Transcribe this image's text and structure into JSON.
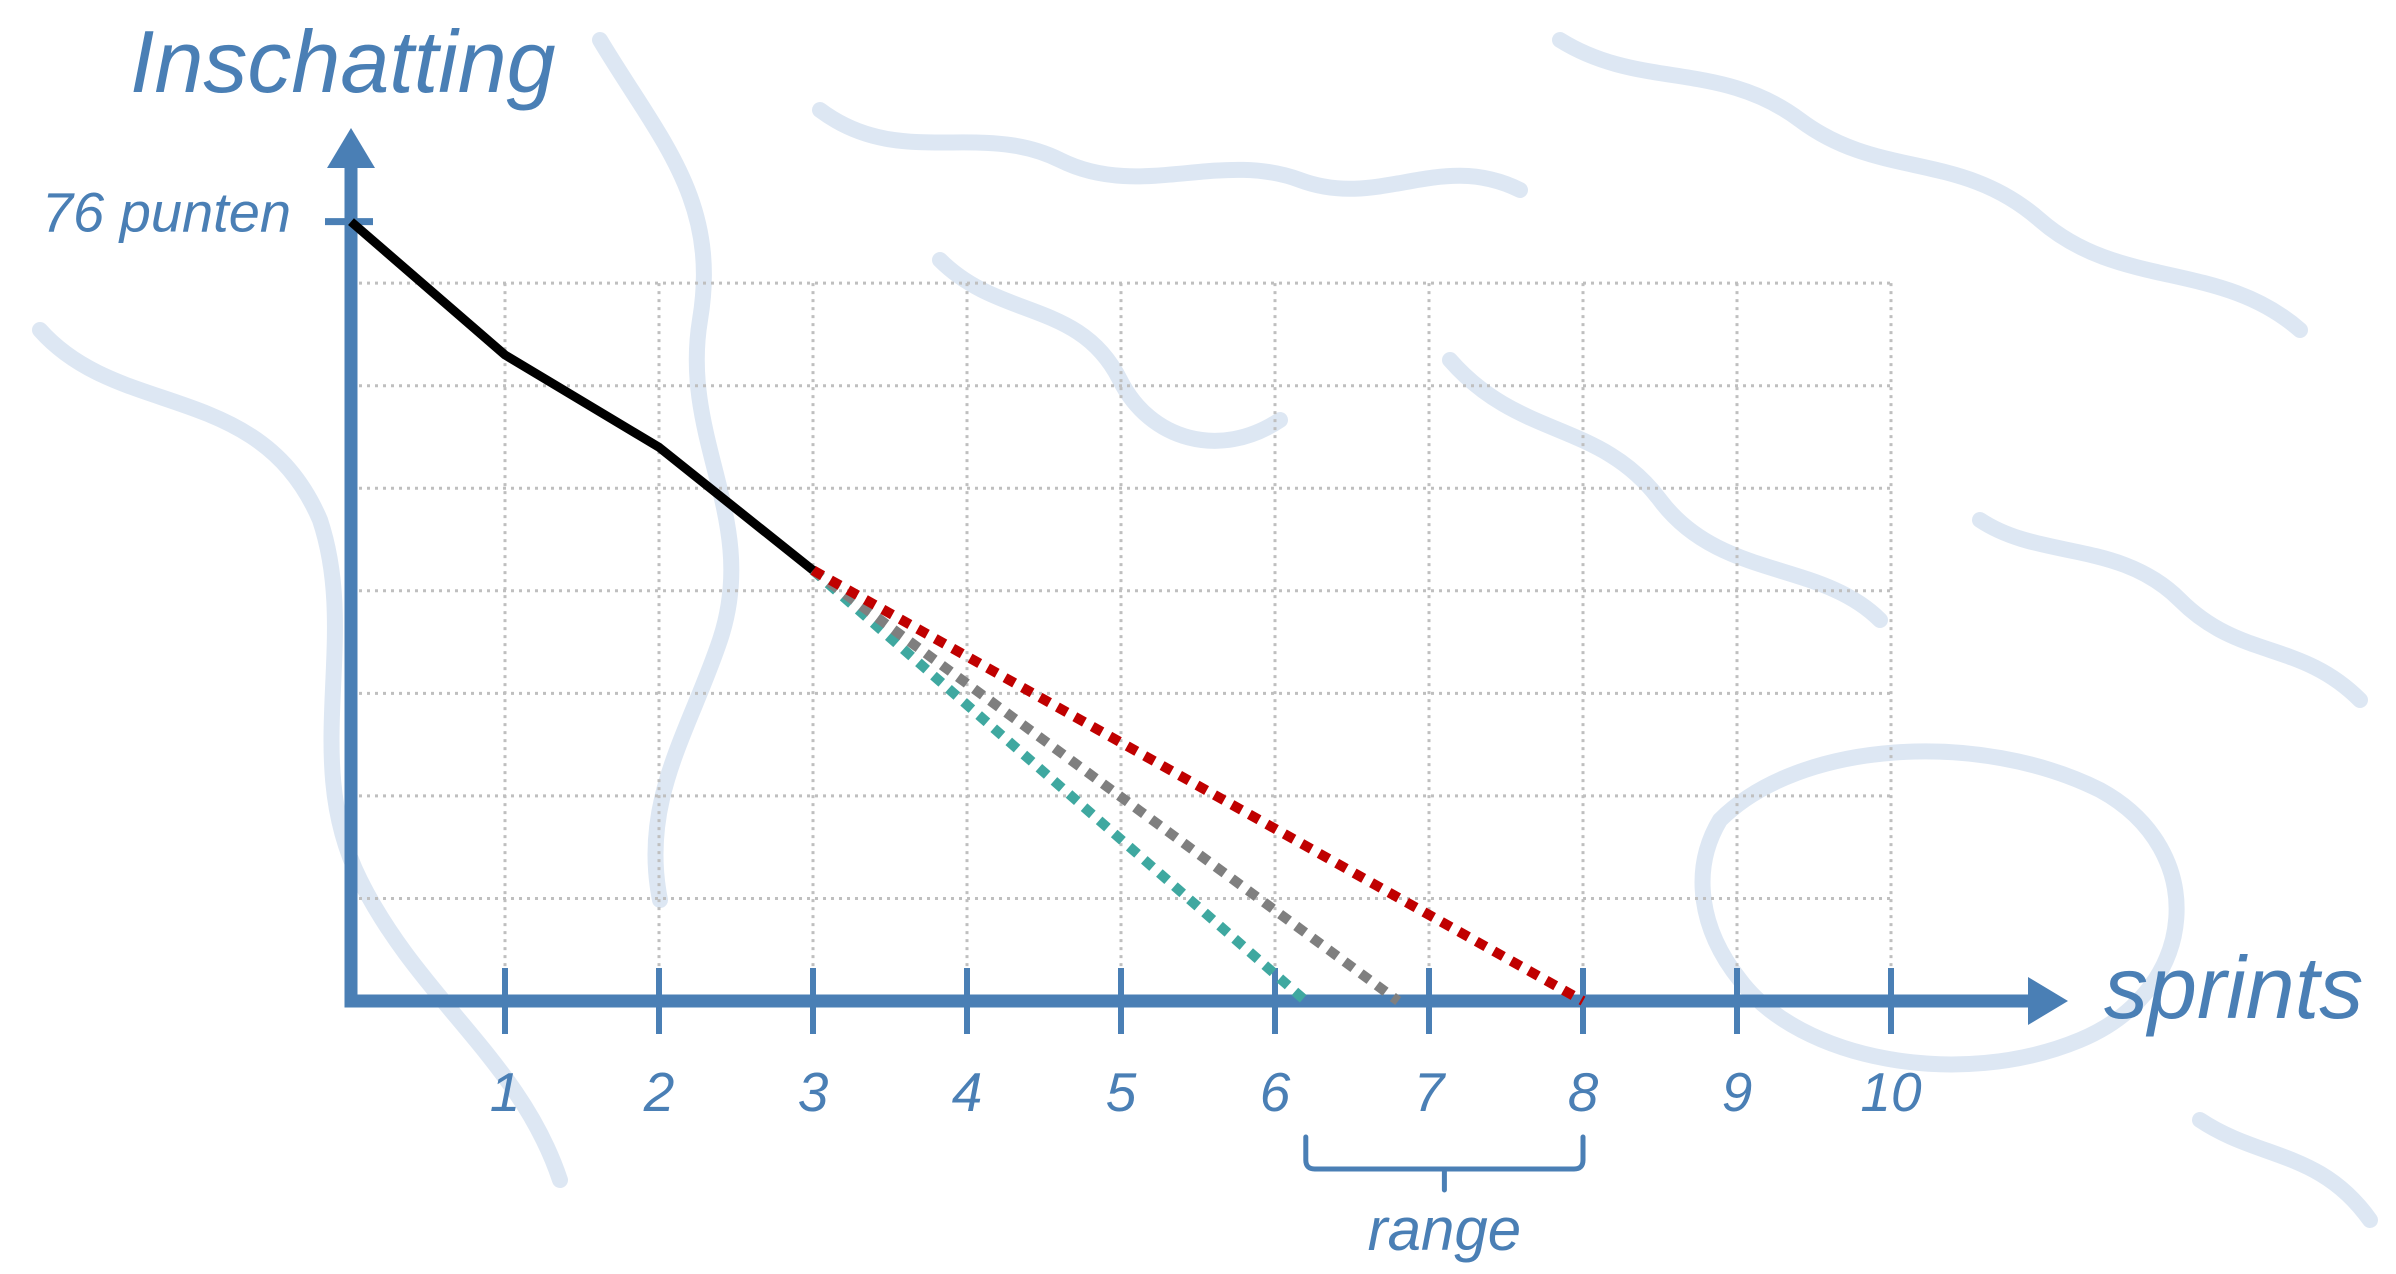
{
  "chart_data": {
    "type": "line",
    "ylabel": "Inschatting",
    "xlabel": "sprints",
    "xlim": [
      0,
      10
    ],
    "ylim": [
      0,
      76
    ],
    "x_ticks": [
      1,
      2,
      3,
      4,
      5,
      6,
      7,
      8,
      9,
      10
    ],
    "y_ticks": [
      {
        "value": 76,
        "label": "76 punten"
      }
    ],
    "grid": true,
    "y_gridlines": [
      10,
      20,
      30,
      40,
      50,
      60,
      70
    ],
    "axis_color": "#4a7fb5",
    "grid_color": "#bfbfbf",
    "series": [
      {
        "style": "dotted",
        "color": "#3fa8a0",
        "x": [
          3,
          6.2
        ],
        "y": [
          42,
          0
        ]
      },
      {
        "style": "dotted",
        "color": "#7f7f7f",
        "x": [
          3,
          6.8
        ],
        "y": [
          42,
          0
        ]
      },
      {
        "style": "dotted",
        "color": "#c00000",
        "x": [
          3,
          8
        ],
        "y": [
          42,
          0
        ]
      },
      {
        "style": "solid",
        "color": "#000000",
        "x": [
          0,
          1,
          2,
          3
        ],
        "y": [
          76,
          63,
          54,
          42
        ]
      }
    ],
    "annotations": [
      {
        "type": "bracket",
        "text": "range",
        "x_from": 6.2,
        "x_to": 8
      }
    ]
  }
}
